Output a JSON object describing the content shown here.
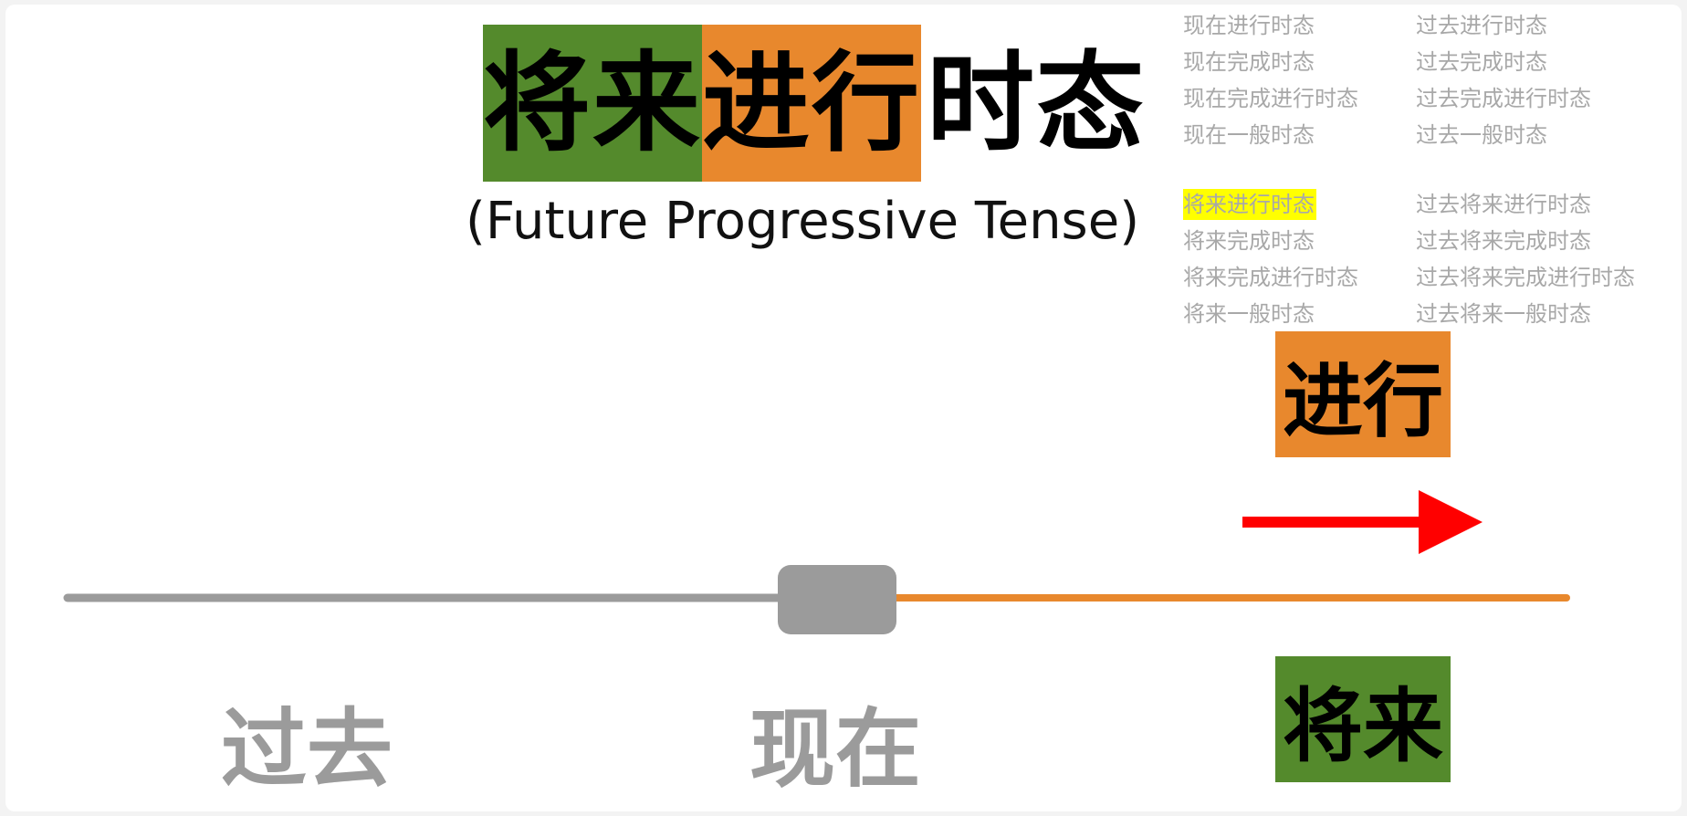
{
  "title": {
    "segments": [
      "将来",
      "进行",
      "时态"
    ],
    "subtitle": "(Future Progressive Tense)"
  },
  "tense_list": {
    "left": [
      "现在进行时态",
      "现在完成时态",
      "现在完成进行时态",
      "现在一般时态",
      "将来进行时态",
      "将来完成时态",
      "将来完成进行时态",
      "将来一般时态"
    ],
    "right": [
      "过去进行时态",
      "过去完成时态",
      "过去完成进行时态",
      "过去一般时态",
      "过去将来进行时态",
      "过去将来完成时态",
      "过去将来完成进行时态",
      "过去将来一般时态"
    ],
    "highlighted": "将来进行时态"
  },
  "diagram": {
    "aspect_label": "进行",
    "future_label": "将来",
    "past_label": "过去",
    "now_label": "现在"
  },
  "colors": {
    "green": "#548a2c",
    "orange": "#e8882d",
    "gray_line": "#9b9b9b",
    "arrow_red": "#ff0000",
    "highlight_yellow": "#ffff00",
    "list_gray": "#a8a8a8"
  }
}
